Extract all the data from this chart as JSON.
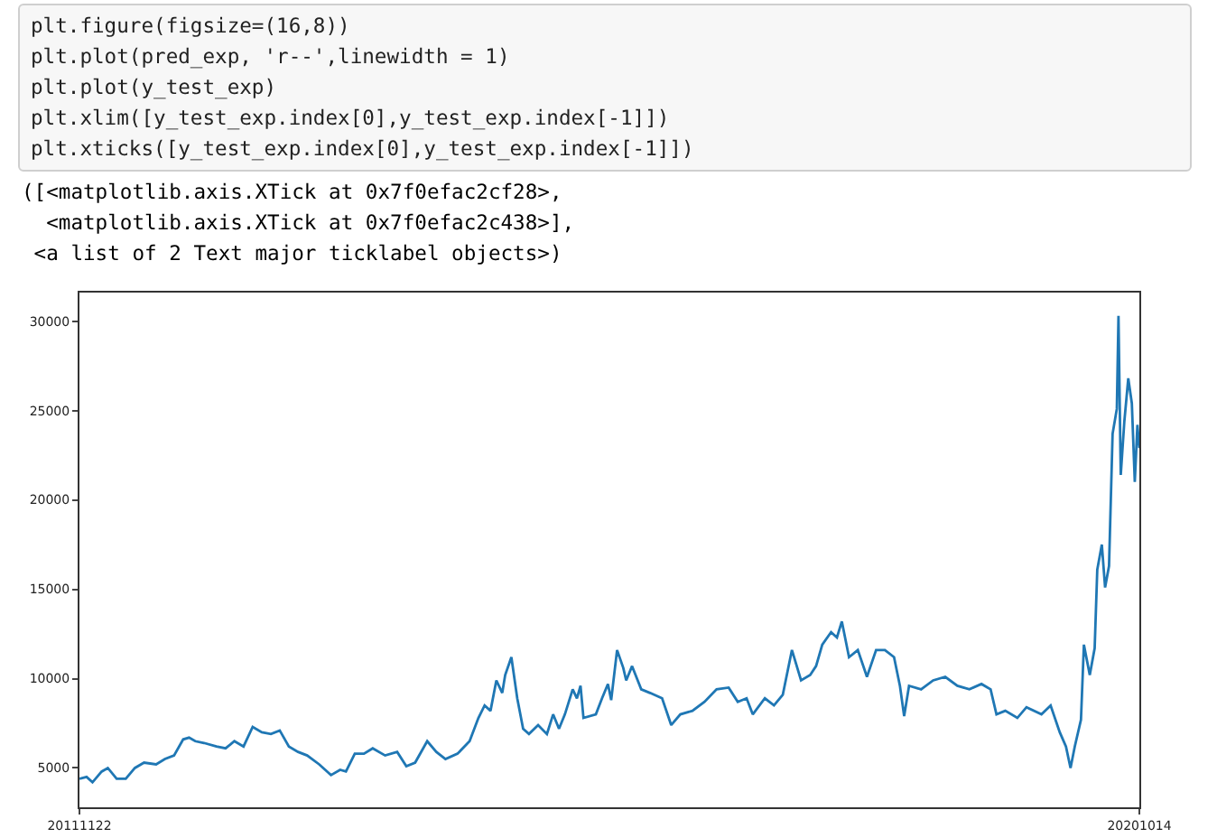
{
  "chart_data": {
    "type": "line",
    "annotations": [
      "plt.figure(figsize=(16,8))\nplt.plot(pred_exp, 'r--',linewidth = 1)\nplt.plot(y_test_exp)\nplt.xlim([y_test_exp.index[0],y_test_exp.index[-1]])\nplt.xticks([y_test_exp.index[0],y_test_exp.index[-1]])",
      "([<matplotlib.axis.XTick at 0x7f0efac2cf28>,\n  <matplotlib.axis.XTick at 0x7f0efac2c438>],\n <a list of 2 Text major ticklabel objects>)"
    ],
    "x": [
      "2011-11-22",
      "2011-12-14",
      "2012-01-01",
      "2012-01-29",
      "2012-02-17",
      "2012-03-15",
      "2012-04-12",
      "2012-05-10",
      "2012-06-07",
      "2012-07-14",
      "2012-08-10",
      "2012-09-07",
      "2012-10-05",
      "2012-10-23",
      "2012-11-11",
      "2012-12-08",
      "2013-01-15",
      "2013-02-12",
      "2013-03-11",
      "2013-04-08",
      "2013-05-06",
      "2013-06-03",
      "2013-07-01",
      "2013-07-28",
      "2013-08-25",
      "2013-09-22",
      "2013-10-20",
      "2013-11-26",
      "2014-01-01",
      "2014-01-29",
      "2014-02-16",
      "2014-03-15",
      "2014-04-12",
      "2014-05-09",
      "2014-06-16",
      "2014-07-23",
      "2014-08-20",
      "2014-09-16",
      "2014-10-23",
      "2014-11-20",
      "2014-12-18",
      "2015-01-24",
      "2015-03-02",
      "2015-03-29",
      "2015-04-17",
      "2015-05-05",
      "2015-05-23",
      "2015-06-10",
      "2015-06-19",
      "2015-07-08",
      "2015-07-26",
      "2015-08-13",
      "2015-08-31",
      "2015-09-28",
      "2015-10-25",
      "2015-11-13",
      "2015-12-01",
      "2015-12-19",
      "2016-01-12",
      "2016-01-25",
      "2016-02-05",
      "2016-02-14",
      "2016-03-23",
      "2016-04-11",
      "2016-04-29",
      "2016-05-09",
      "2016-05-27",
      "2016-06-15",
      "2016-06-24",
      "2016-07-12",
      "2016-08-09",
      "2016-09-05",
      "2016-10-12",
      "2016-11-09",
      "2016-12-07",
      "2017-01-13",
      "2017-02-19",
      "2017-03-28",
      "2017-05-04",
      "2017-06-01",
      "2017-06-28",
      "2017-07-17",
      "2017-08-23",
      "2017-09-20",
      "2017-10-17",
      "2017-11-14",
      "2017-12-12",
      "2018-01-09",
      "2018-01-27",
      "2018-02-15",
      "2018-03-14",
      "2018-04-01",
      "2018-04-16",
      "2018-05-08",
      "2018-06-04",
      "2018-07-02",
      "2018-07-30",
      "2018-08-26",
      "2018-09-23",
      "2018-10-11",
      "2018-10-24",
      "2018-11-08",
      "2018-12-15",
      "2019-01-21",
      "2019-02-27",
      "2019-04-05",
      "2019-05-12",
      "2019-06-18",
      "2019-07-16",
      "2019-08-03",
      "2019-08-30",
      "2019-10-06",
      "2019-11-03",
      "2019-12-19",
      "2020-01-16",
      "2020-02-13",
      "2020-03-03",
      "2020-03-17",
      "2020-03-30",
      "2020-04-18",
      "2020-04-27",
      "2020-05-15",
      "2020-05-30",
      "2020-06-07",
      "2020-06-21",
      "2020-07-01",
      "2020-07-13",
      "2020-07-24",
      "2020-08-06",
      "2020-08-11",
      "2020-08-18",
      "2020-08-29",
      "2020-09-10",
      "2020-09-21",
      "2020-09-30",
      "2020-10-08",
      "2020-10-14"
    ],
    "series": [
      {
        "color": "#1f77b4",
        "values": [
          4400,
          4500,
          4200,
          4800,
          5000,
          4400,
          4400,
          5000,
          5300,
          5200,
          5500,
          5700,
          6600,
          6700,
          6500,
          6400,
          6200,
          6100,
          6500,
          6200,
          7300,
          7000,
          6900,
          7100,
          6200,
          5900,
          5700,
          5200,
          4600,
          4900,
          4800,
          5800,
          5800,
          6100,
          5700,
          5900,
          5100,
          5300,
          6500,
          5900,
          5500,
          5800,
          6500,
          7800,
          8500,
          8200,
          9900,
          9200,
          10200,
          11200,
          8900,
          7200,
          6900,
          7400,
          6900,
          8000,
          7200,
          8000,
          9400,
          8900,
          9600,
          7800,
          8000,
          8900,
          9700,
          8800,
          11600,
          10600,
          9900,
          10700,
          9400,
          9200,
          8900,
          7400,
          8000,
          8200,
          8700,
          9400,
          9500,
          8700,
          8900,
          8000,
          8900,
          8500,
          9100,
          11600,
          9900,
          10200,
          10700,
          11900,
          12600,
          12300,
          13200,
          11200,
          11600,
          10100,
          11600,
          11600,
          11200,
          9600,
          7900,
          9600,
          9400,
          9900,
          10100,
          9600,
          9400,
          9700,
          9400,
          8000,
          8200,
          7800,
          8400,
          8000,
          8500,
          7000,
          6200,
          5000,
          6200,
          7700,
          11900,
          10200,
          11700,
          16100,
          17500,
          15100,
          16300,
          23700,
          25100,
          30300,
          21400,
          24400,
          26800,
          25400,
          21000,
          24200,
          22900
        ]
      }
    ],
    "xlim": [
      "2011-11-22",
      "2020-10-14"
    ],
    "xticks": [
      {
        "value": "2011-11-22",
        "label": "20111122"
      },
      {
        "value": "2020-10-14",
        "label": "20201014"
      }
    ],
    "ylim": [
      2800,
      31600
    ],
    "yticks": [
      5000,
      10000,
      15000,
      20000,
      25000,
      30000
    ],
    "marker": "none",
    "line_style": "solid"
  }
}
